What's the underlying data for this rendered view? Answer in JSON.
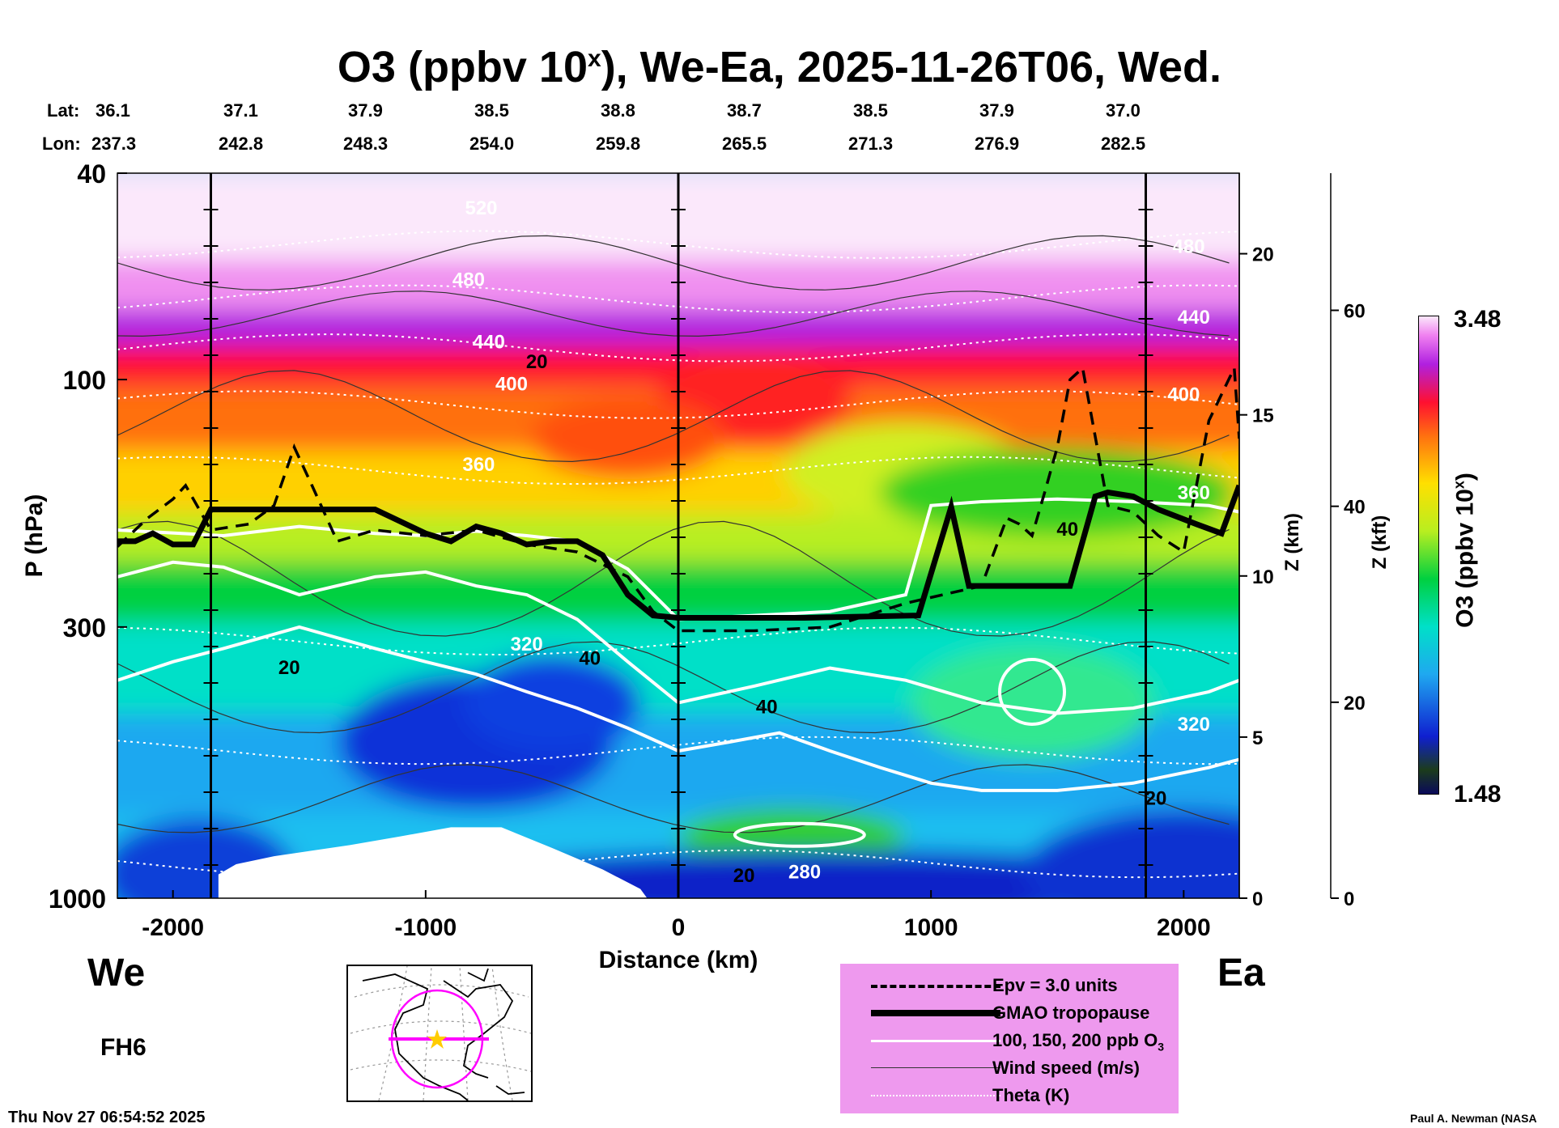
{
  "title_main": "O3 (ppbv 10",
  "title_sup": "x",
  "title_rest": "), We-Ea, 2025-11-26T06, Wed.",
  "lat_label": "Lat:",
  "lon_label": "Lon:",
  "lat_values": [
    "36.1",
    "37.1",
    "37.9",
    "38.5",
    "38.8",
    "38.7",
    "38.5",
    "37.9",
    "37.0"
  ],
  "lon_values": [
    "237.3",
    "242.8",
    "248.3",
    "254.0",
    "259.8",
    "265.5",
    "271.3",
    "276.9",
    "282.5"
  ],
  "left_end": "We",
  "right_end": "Ea",
  "forecast_hour": "FH6",
  "timestamp": "Thu Nov 27 06:54:52 2025",
  "credit": "Paul A. Newman (NASA",
  "legend": [
    {
      "style": "dashed",
      "label": "Epv = 3.0 units"
    },
    {
      "style": "thick",
      "label": "GMAO tropopause"
    },
    {
      "style": "white",
      "label": "100, 150, 200 ppb O"
    },
    {
      "style": "thin",
      "label": "Wind speed (m/s)"
    },
    {
      "style": "dotted",
      "label": "Theta (K)"
    }
  ],
  "legend_o3_sub": "3",
  "colorbar": {
    "max_label": "3.48",
    "min_label": "1.48",
    "title": "O3 (ppbv 10",
    "title_sup": "x",
    "title_end": ")"
  },
  "colors": {
    "bg": "#ffffff",
    "legend_bg": "#ee99ee",
    "marker": "#ffcc00",
    "track": "#ff00ff"
  },
  "chart_data": {
    "type": "heatmap",
    "title": "O3 (ppbv 10^x), We-Ea, 2025-11-26T06, Wed.",
    "xlabel": "Distance (km)",
    "ylabel": "P (hPa)",
    "y2label": "Z (km)",
    "y3label": "Z (kft)",
    "xlim": [
      -2220,
      2220
    ],
    "ylim": [
      1000,
      40
    ],
    "y_scale": "log",
    "x_ticks": [
      -2000,
      -1000,
      0,
      1000,
      2000
    ],
    "x_tick_labels": [
      "-2000",
      "-1000",
      "0",
      "1000",
      "2000"
    ],
    "y_ticks": [
      40,
      100,
      300,
      1000
    ],
    "y_tick_labels": [
      "40",
      "100",
      "300",
      "1000"
    ],
    "z_km_ticks": [
      0,
      5,
      10,
      15,
      20
    ],
    "z_km_labels": [
      "0",
      "5",
      "10",
      "15",
      "20"
    ],
    "z_kft_ticks": [
      0,
      20,
      40,
      60
    ],
    "z_kft_labels": [
      "0",
      "20",
      "40",
      "60"
    ],
    "colorbar_range": [
      1.48,
      3.48
    ],
    "vertical_markers_km": [
      -1850,
      0,
      1850
    ],
    "tropopause": {
      "x": [
        -2220,
        -2150,
        -2080,
        -2000,
        -1920,
        -1850,
        -1500,
        -1200,
        -1000,
        -900,
        -800,
        -700,
        -600,
        -500,
        -400,
        -300,
        -200,
        -100,
        0,
        500,
        950,
        1080,
        1150,
        1550,
        1650,
        1700,
        1800,
        1900,
        2050,
        2150,
        2220
      ],
      "p": [
        205,
        205,
        198,
        208,
        208,
        178,
        178,
        178,
        198,
        205,
        192,
        198,
        208,
        205,
        205,
        218,
        260,
        285,
        288,
        288,
        285,
        176,
        250,
        250,
        168,
        165,
        168,
        178,
        190,
        198,
        160
      ]
    },
    "epv_3": {
      "x": [
        -2220,
        -2100,
        -2000,
        -1950,
        -1850,
        -1700,
        -1600,
        -1520,
        -1450,
        -1350,
        -1200,
        -1000,
        -800,
        -600,
        -400,
        -200,
        -100,
        0,
        300,
        600,
        900,
        1200,
        1300,
        1350,
        1400,
        1450,
        1500,
        1550,
        1600,
        1700,
        1800,
        1900,
        2000,
        2100,
        2200,
        2220
      ],
      "p": [
        210,
        185,
        170,
        160,
        195,
        190,
        175,
        135,
        160,
        205,
        195,
        200,
        195,
        208,
        215,
        240,
        280,
        305,
        305,
        300,
        270,
        250,
        185,
        190,
        200,
        165,
        135,
        100,
        95,
        175,
        180,
        200,
        215,
        120,
        95,
        130
      ]
    },
    "ozone_100": {
      "x": [
        -2220,
        -1800,
        -1500,
        -1200,
        -1000,
        -800,
        -600,
        -400,
        -200,
        0,
        300,
        600,
        900,
        1000,
        1200,
        1500,
        1800,
        2100,
        2220
      ],
      "p": [
        195,
        200,
        192,
        198,
        200,
        196,
        200,
        205,
        232,
        290,
        285,
        280,
        260,
        175,
        172,
        170,
        172,
        175,
        180
      ]
    },
    "ozone_150": {
      "x": [
        -2220,
        -2000,
        -1800,
        -1500,
        -1200,
        -1000,
        -800,
        -600,
        -400,
        -200,
        0,
        300,
        600,
        900,
        1200,
        1500,
        1800,
        2100,
        2220
      ],
      "p": [
        240,
        225,
        230,
        260,
        240,
        235,
        250,
        260,
        290,
        350,
        420,
        390,
        360,
        380,
        420,
        440,
        430,
        400,
        380
      ]
    },
    "ozone_200": {
      "x": [
        -2220,
        -2000,
        -1800,
        -1500,
        -1200,
        -1000,
        -800,
        -600,
        -400,
        -200,
        0,
        200,
        400,
        600,
        800,
        1000,
        1200,
        1500,
        1800,
        2100,
        2220
      ],
      "p": [
        380,
        350,
        330,
        300,
        330,
        350,
        370,
        400,
        430,
        470,
        520,
        500,
        480,
        520,
        560,
        600,
        620,
        620,
        600,
        560,
        540
      ]
    },
    "wind_labels": [
      {
        "x": -1540,
        "p": 370,
        "text": "20"
      },
      {
        "x": -560,
        "p": 95,
        "text": "20"
      },
      {
        "x": -350,
        "p": 355,
        "text": "40"
      },
      {
        "x": 350,
        "p": 440,
        "text": "40"
      },
      {
        "x": 1540,
        "p": 200,
        "text": "40"
      },
      {
        "x": 1890,
        "p": 660,
        "text": "20"
      },
      {
        "x": 260,
        "p": 930,
        "text": "20"
      }
    ],
    "theta_labels": [
      {
        "x": -780,
        "p": 48,
        "text": "520"
      },
      {
        "x": -830,
        "p": 66,
        "text": "480"
      },
      {
        "x": -750,
        "p": 87,
        "text": "440"
      },
      {
        "x": -660,
        "p": 105,
        "text": "400"
      },
      {
        "x": -790,
        "p": 150,
        "text": "360"
      },
      {
        "x": -600,
        "p": 333,
        "text": "320"
      },
      {
        "x": 500,
        "p": 915,
        "text": "280"
      },
      {
        "x": 2020,
        "p": 57,
        "text": "480"
      },
      {
        "x": 2040,
        "p": 78,
        "text": "440"
      },
      {
        "x": 2000,
        "p": 110,
        "text": "400"
      },
      {
        "x": 2040,
        "p": 170,
        "text": "360"
      },
      {
        "x": 2040,
        "p": 475,
        "text": "320"
      }
    ]
  }
}
